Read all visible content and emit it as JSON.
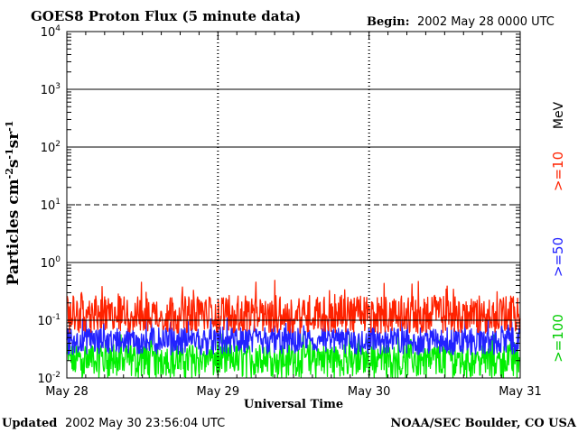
{
  "chart_data": {
    "type": "line",
    "title": "GOES8 Proton Flux (5 minute data)",
    "begin_label": "Begin:",
    "begin_value": "2002 May 28 0000 UTC",
    "ylabel_prefix": "Particles cm",
    "xlabel": "Universal Time",
    "y_scale": "log",
    "ylim": [
      0.01,
      10000
    ],
    "y_ticks": [
      {
        "base": "10",
        "exp": "4"
      },
      {
        "base": "10",
        "exp": "3"
      },
      {
        "base": "10",
        "exp": "2"
      },
      {
        "base": "10",
        "exp": "1"
      },
      {
        "base": "10",
        "exp": "0"
      },
      {
        "base": "10",
        "exp": "-1"
      },
      {
        "base": "10",
        "exp": "-2"
      }
    ],
    "x_ticks": [
      "May 28",
      "May 29",
      "May 30",
      "May 31"
    ],
    "xlim": [
      "2002-05-28 00:00",
      "2002-05-31 00:00"
    ],
    "unit_label": "MeV",
    "legend_placement": "right",
    "series": [
      {
        "name": ">=10",
        "color": "#ff2200",
        "min": 0.06,
        "typical": 0.12,
        "max": 0.5
      },
      {
        "name": ">=50",
        "color": "#2222ff",
        "min": 0.025,
        "typical": 0.045,
        "max": 0.11
      },
      {
        "name": ">=100",
        "color": "#00ee00",
        "min": 0.01,
        "typical": 0.022,
        "max": 0.06
      }
    ],
    "threshold_lines": [
      {
        "value": 10,
        "style": "dashed"
      },
      {
        "value": 0.1,
        "style": "solid"
      }
    ],
    "colors": {
      "axis": "#000000",
      "background": "#ffffff"
    }
  },
  "footer": {
    "updated_label": "Updated",
    "updated_value": "2002 May 30 23:56:04 UTC",
    "credit": "NOAA/SEC Boulder, CO USA"
  }
}
